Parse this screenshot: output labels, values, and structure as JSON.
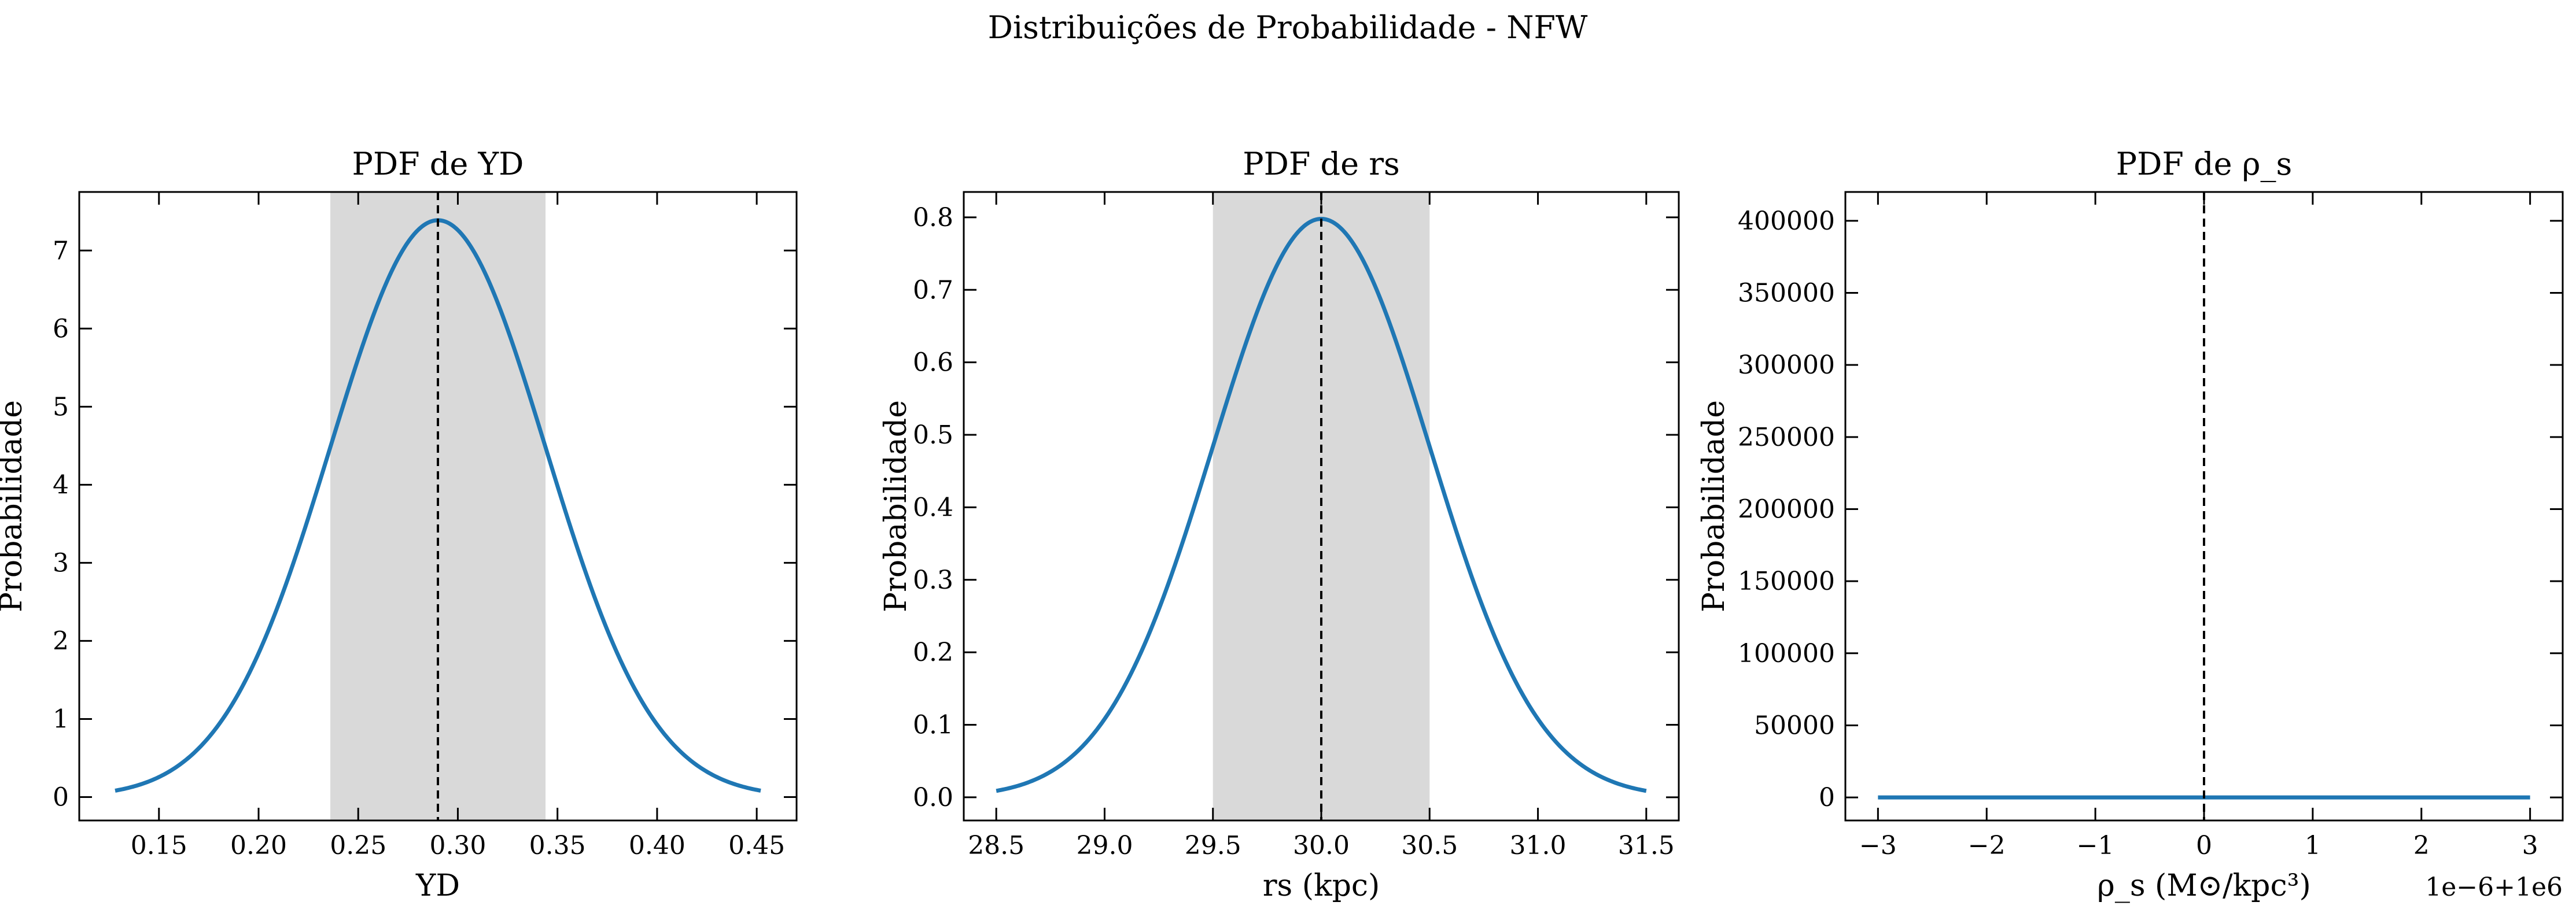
{
  "figure": {
    "title": "Distribuições de Probabilidade - NFW"
  },
  "colors": {
    "curve": "#1f77b4",
    "band": "#bfbfbf",
    "mean_line": "#000000",
    "axes": "#000000"
  },
  "chart_data": [
    {
      "type": "line",
      "title": "PDF de YD",
      "xlabel": "YD",
      "ylabel": "Probabilidade",
      "xlim": [
        0.11,
        0.47
      ],
      "ylim": [
        -0.3,
        7.75
      ],
      "xticks": [
        0.15,
        0.2,
        0.25,
        0.3,
        0.35,
        0.4,
        0.45
      ],
      "xtick_labels": [
        "0.15",
        "0.20",
        "0.25",
        "0.30",
        "0.35",
        "0.40",
        "0.45"
      ],
      "yticks": [
        0,
        1,
        2,
        3,
        4,
        5,
        6,
        7
      ],
      "ytick_labels": [
        "0",
        "1",
        "2",
        "3",
        "4",
        "5",
        "6",
        "7"
      ],
      "distribution": {
        "kind": "normal",
        "mean": 0.29,
        "std": 0.054,
        "x_range": [
          0.128,
          0.452
        ]
      },
      "mean_line": 0.29,
      "band": [
        0.236,
        0.344
      ]
    },
    {
      "type": "line",
      "title": "PDF de rs",
      "xlabel": "rs (kpc)",
      "ylabel": "Probabilidade",
      "xlim": [
        28.35,
        31.65
      ],
      "ylim": [
        -0.032,
        0.835
      ],
      "xticks": [
        28.5,
        29.0,
        29.5,
        30.0,
        30.5,
        31.0,
        31.5
      ],
      "xtick_labels": [
        "28.5",
        "29.0",
        "29.5",
        "30.0",
        "30.5",
        "31.0",
        "31.5"
      ],
      "yticks": [
        0.0,
        0.1,
        0.2,
        0.3,
        0.4,
        0.5,
        0.6,
        0.7,
        0.8
      ],
      "ytick_labels": [
        "0.0",
        "0.1",
        "0.2",
        "0.3",
        "0.4",
        "0.5",
        "0.6",
        "0.7",
        "0.8"
      ],
      "distribution": {
        "kind": "normal",
        "mean": 30.0,
        "std": 0.5,
        "x_range": [
          28.5,
          31.5
        ]
      },
      "mean_line": 30.0,
      "band": [
        29.5,
        30.5
      ]
    },
    {
      "type": "line",
      "title": "PDF de ρ_s",
      "xlabel": "ρ_s (M⊙/kpc³)",
      "ylabel": "Probabilidade",
      "offset_label": "1e−6+1e6",
      "xlim": [
        -3.3,
        3.3
      ],
      "ylim": [
        -16000,
        420000
      ],
      "xticks": [
        -3,
        -2,
        -1,
        0,
        1,
        2,
        3
      ],
      "xtick_labels": [
        "−3",
        "−2",
        "−1",
        "0",
        "1",
        "2",
        "3"
      ],
      "yticks": [
        0,
        50000,
        100000,
        150000,
        200000,
        250000,
        300000,
        350000,
        400000
      ],
      "ytick_labels": [
        "0",
        "50000",
        "100000",
        "150000",
        "200000",
        "250000",
        "300000",
        "350000",
        "400000"
      ],
      "distribution": {
        "kind": "normal",
        "mean": 0,
        "std": 1.0,
        "scale": 1.0027,
        "x_range": [
          -3,
          3
        ]
      },
      "mean_line": 0,
      "band": null
    }
  ]
}
